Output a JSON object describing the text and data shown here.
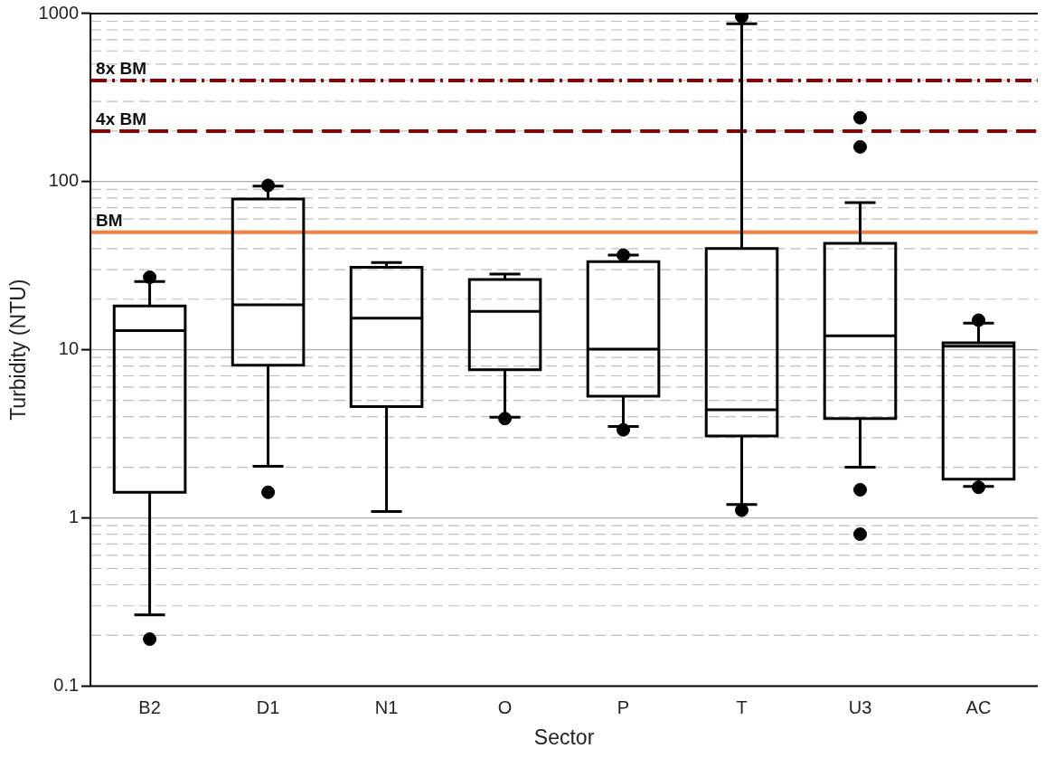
{
  "chart_data": {
    "type": "box",
    "xlabel": "Sector",
    "ylabel": "Turbidity (NTU)",
    "categories": [
      "B2",
      "D1",
      "N1",
      "O",
      "P",
      "T",
      "U3",
      "AC"
    ],
    "boxes": [
      {
        "low": 0.265,
        "q1": 1.42,
        "median": 13,
        "q3": 18.2,
        "high": 25.5,
        "outliers": [
          27,
          0.19
        ]
      },
      {
        "low": 2.03,
        "q1": 8.1,
        "median": 18.5,
        "q3": 79,
        "high": 94,
        "outliers": [
          95,
          1.42
        ]
      },
      {
        "low": 1.09,
        "q1": 4.6,
        "median": 15.4,
        "q3": 31,
        "high": 33
      },
      {
        "low": 3.97,
        "q1": 7.6,
        "median": 16.9,
        "q3": 26.2,
        "high": 28.2,
        "outliers": [
          3.9
        ]
      },
      {
        "low": 3.5,
        "q1": 5.3,
        "median": 10.1,
        "q3": 33.4,
        "high": 36.6,
        "outliers": [
          36.6,
          3.34
        ]
      },
      {
        "low": 1.2,
        "q1": 3.07,
        "median": 4.4,
        "q3": 40,
        "high": 870,
        "outliers": [
          960,
          1.11
        ]
      },
      {
        "low": 2,
        "q1": 3.9,
        "median": 12.1,
        "q3": 43,
        "high": 75,
        "outliers": [
          240,
          161,
          1.47,
          0.8
        ]
      },
      {
        "low": 1.54,
        "q1": 1.7,
        "median": 10.5,
        "q3": 11,
        "high": 14.4,
        "outliers": [
          15,
          1.52
        ]
      }
    ],
    "color": "#000000",
    "log": "y",
    "ylim": [
      0.1,
      1000
    ],
    "yticks": [
      0.1,
      1,
      10,
      100,
      1000
    ],
    "grid": "y",
    "ref_lines": [
      {
        "axis": "y",
        "value": 400,
        "label": "8x BM",
        "color": "#8b0000",
        "line_style": "dashdot"
      },
      {
        "axis": "y",
        "value": 200,
        "label": "4x BM",
        "color": "#8b0000",
        "line_style": "dashed"
      },
      {
        "axis": "y",
        "value": 50,
        "label": "BM",
        "color": "#f4813f",
        "line_style": "solid"
      }
    ]
  }
}
